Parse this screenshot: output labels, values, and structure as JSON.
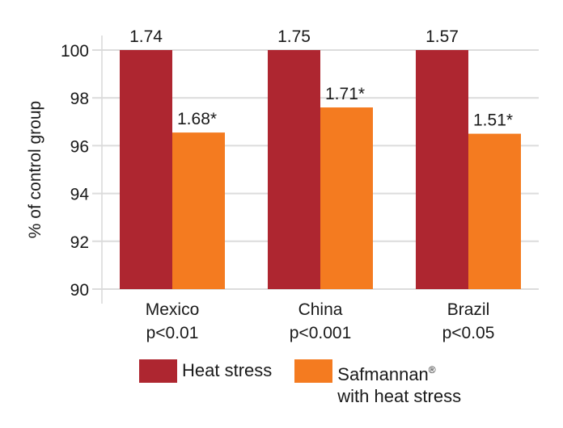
{
  "chart_data": {
    "type": "bar",
    "title": "",
    "xlabel": "",
    "ylabel": "% of control group",
    "ylim": [
      90,
      100
    ],
    "yticks": [
      90,
      92,
      94,
      96,
      98,
      100
    ],
    "grid": true,
    "categories": [
      {
        "name": "Mexico",
        "sub": "p<0.01"
      },
      {
        "name": "China",
        "sub": "p<0.001"
      },
      {
        "name": "Brazil",
        "sub": "p<0.05"
      }
    ],
    "series": [
      {
        "name": "Heat stress",
        "color": "#ae2630",
        "values": [
          100,
          100,
          100
        ],
        "labels": [
          "1.74",
          "1.75",
          "1.57"
        ]
      },
      {
        "name": "Safmannan® with heat stress",
        "color": "#f47b20",
        "values": [
          96.55,
          97.6,
          96.5
        ],
        "labels": [
          "1.68*",
          "1.71*",
          "1.51*"
        ]
      }
    ],
    "legend_position": "bottom"
  },
  "legend": {
    "items": [
      {
        "line1": "Heat stress",
        "line2": "",
        "color": "#ae2630"
      },
      {
        "line1": "Safmannan",
        "sup": "®",
        "line2": "with heat stress",
        "color": "#f47b20"
      }
    ]
  }
}
